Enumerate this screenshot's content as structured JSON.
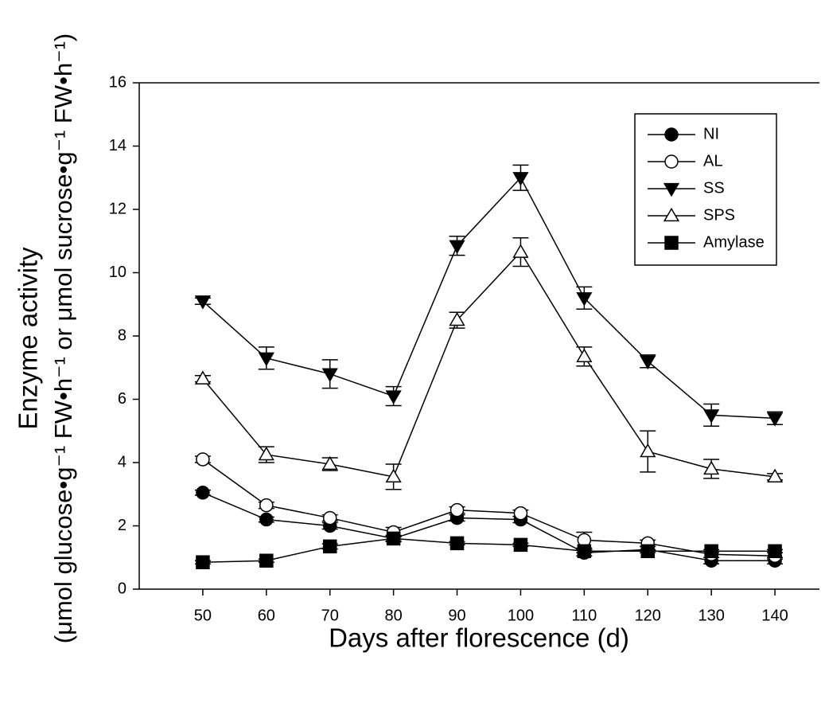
{
  "chart_data": {
    "type": "line",
    "xlabel": "Days after florescence (d)",
    "ylabel": [
      "Enzyme activity",
      "(μmol glucose•g⁻¹ FW•h⁻¹ or μmol sucrose•g⁻¹ FW•h⁻¹)"
    ],
    "x": [
      50,
      60,
      70,
      80,
      90,
      100,
      110,
      120,
      130,
      140
    ],
    "xlim": [
      40,
      147
    ],
    "xticks": [
      50,
      60,
      70,
      80,
      90,
      100,
      110,
      120,
      130,
      140
    ],
    "ylim": [
      0,
      16
    ],
    "yticks": [
      0,
      2,
      4,
      6,
      8,
      10,
      12,
      14,
      16
    ],
    "legend": "upper right",
    "series": [
      {
        "name": "NI",
        "color": "#000000",
        "marker": "circle",
        "filled": true,
        "values": [
          3.05,
          2.2,
          2.0,
          1.6,
          2.25,
          2.2,
          1.15,
          1.25,
          0.9,
          0.9
        ],
        "errors": [
          0.08,
          0.08,
          0.1,
          0.1,
          0.1,
          0.1,
          0.1,
          0.1,
          0.1,
          0.1
        ]
      },
      {
        "name": "AL",
        "color": "#000000",
        "marker": "circle",
        "filled": false,
        "values": [
          4.1,
          2.65,
          2.25,
          1.8,
          2.5,
          2.4,
          1.55,
          1.45,
          1.1,
          1.05
        ],
        "errors": [
          0.1,
          0.1,
          0.1,
          0.15,
          0.1,
          0.1,
          0.25,
          0.1,
          0.1,
          0.1
        ]
      },
      {
        "name": "SS",
        "color": "#000000",
        "marker": "triangle-down",
        "filled": true,
        "values": [
          9.1,
          7.3,
          6.8,
          6.1,
          10.85,
          13.0,
          9.2,
          7.2,
          5.5,
          5.4
        ],
        "errors": [
          0.1,
          0.35,
          0.45,
          0.3,
          0.3,
          0.4,
          0.35,
          0.2,
          0.35,
          0.2
        ]
      },
      {
        "name": "SPS",
        "color": "#000000",
        "marker": "triangle-up",
        "filled": false,
        "values": [
          6.65,
          4.25,
          3.95,
          3.55,
          8.5,
          10.65,
          7.35,
          4.35,
          3.8,
          3.55
        ],
        "errors": [
          0.1,
          0.25,
          0.2,
          0.4,
          0.25,
          0.45,
          0.3,
          0.65,
          0.3,
          0.1
        ]
      },
      {
        "name": "Amylase",
        "color": "#000000",
        "marker": "square",
        "filled": true,
        "values": [
          0.85,
          0.9,
          1.35,
          1.6,
          1.45,
          1.4,
          1.2,
          1.2,
          1.2,
          1.2
        ],
        "errors": [
          0.05,
          0.05,
          0.08,
          0.08,
          0.05,
          0.05,
          0.05,
          0.05,
          0.05,
          0.05
        ]
      }
    ]
  }
}
